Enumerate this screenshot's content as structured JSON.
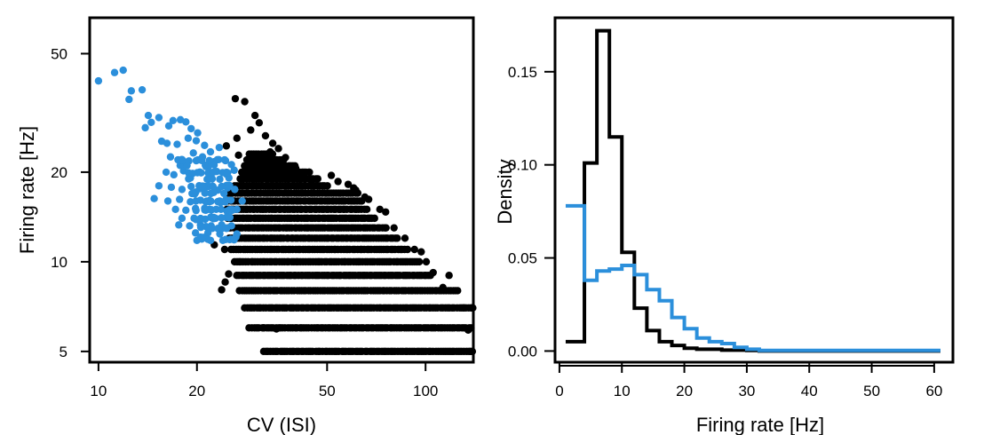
{
  "chart_data": [
    {
      "type": "scatter",
      "xlabel": "CV (ISI)",
      "ylabel": "Firing rate [Hz]",
      "xscale": "log",
      "yscale": "log",
      "xlim": [
        9.4,
        140
      ],
      "ylim": [
        4.6,
        66
      ],
      "xticks": [
        10,
        20,
        50,
        100
      ],
      "yticks": [
        5,
        10,
        20,
        50
      ],
      "series": [
        {
          "color": "#2b8fdb",
          "description": "blue population: higher rates / lower CV cloud",
          "points": [
            [
              10,
              40.5
            ],
            [
              11.2,
              43.2
            ],
            [
              12.6,
              37.5
            ],
            [
              13.6,
              37.8
            ],
            [
              12.4,
              35.1
            ],
            [
              14.2,
              31.0
            ],
            [
              15.3,
              30.5
            ],
            [
              14.5,
              29.4
            ],
            [
              13.9,
              28.2
            ],
            [
              16.4,
              28.6
            ],
            [
              16.9,
              29.8
            ],
            [
              17.8,
              30.0
            ],
            [
              18.5,
              29.5
            ],
            [
              19.2,
              28.0
            ],
            [
              20.1,
              27.1
            ],
            [
              15.6,
              25.4
            ],
            [
              16.2,
              25.0
            ],
            [
              17.4,
              24.8
            ],
            [
              18.8,
              26.0
            ],
            [
              19.9,
              25.5
            ],
            [
              21.1,
              24.6
            ],
            [
              22.0,
              23.4
            ],
            [
              23.4,
              24.2
            ],
            [
              16.6,
              22.5
            ],
            [
              17.5,
              22.0
            ],
            [
              18.9,
              21.8
            ],
            [
              19.5,
              23.2
            ],
            [
              20.8,
              22.5
            ],
            [
              22.6,
              21.7
            ],
            [
              24.3,
              22.0
            ],
            [
              25.5,
              21.2
            ],
            [
              16.1,
              20.0
            ],
            [
              17.0,
              19.6
            ],
            [
              18.2,
              20.2
            ],
            [
              19.4,
              19.8
            ],
            [
              20.6,
              19.9
            ],
            [
              21.8,
              19.4
            ],
            [
              23.0,
              20.1
            ],
            [
              24.6,
              19.7
            ],
            [
              26.0,
              20.3
            ],
            [
              15.3,
              18.0
            ],
            [
              16.7,
              17.8
            ],
            [
              18.0,
              17.5
            ],
            [
              19.2,
              17.9
            ],
            [
              20.4,
              17.6
            ],
            [
              21.7,
              17.9
            ],
            [
              23.2,
              17.4
            ],
            [
              24.8,
              17.7
            ],
            [
              26.1,
              17.5
            ],
            [
              14.8,
              16.3
            ],
            [
              16.3,
              16.0
            ],
            [
              17.7,
              16.2
            ],
            [
              19.1,
              15.9
            ],
            [
              20.5,
              16.1
            ],
            [
              22.0,
              16.0
            ],
            [
              23.6,
              15.8
            ],
            [
              25.4,
              16.1
            ],
            [
              27.5,
              16.0
            ],
            [
              17.2,
              15.0
            ],
            [
              18.5,
              14.9
            ],
            [
              19.8,
              15.1
            ],
            [
              21.3,
              14.9
            ],
            [
              22.9,
              15.0
            ],
            [
              24.7,
              14.8
            ],
            [
              26.5,
              15.0
            ],
            [
              18.0,
              14.0
            ],
            [
              19.6,
              14.0
            ],
            [
              21.2,
              13.9
            ],
            [
              22.8,
              14.0
            ],
            [
              24.6,
              14.1
            ],
            [
              17.6,
              13.3
            ],
            [
              19.0,
              13.2
            ],
            [
              20.5,
              13.3
            ],
            [
              22.1,
              13.2
            ],
            [
              23.8,
              13.3
            ],
            [
              25.5,
              13.2
            ],
            [
              19.8,
              12.5
            ],
            [
              21.6,
              12.5
            ],
            [
              23.5,
              12.4
            ],
            [
              22.0,
              11.8
            ],
            [
              24.0,
              11.8
            ],
            [
              20.0,
              11.8
            ],
            [
              26.5,
              12.4
            ],
            [
              11.9,
              44.0
            ]
          ]
        },
        {
          "color": "#000000",
          "description": "black population: lower rates / higher CV cloud",
          "rate_bands": [
            {
              "rate": 5,
              "cv_from": 32,
              "cv_to": 140
            },
            {
              "rate": 6,
              "cv_from": 29,
              "cv_to": 140
            },
            {
              "rate": 7,
              "cv_from": 28,
              "cv_to": 140
            },
            {
              "rate": 8,
              "cv_from": 27,
              "cv_to": 124
            },
            {
              "rate": 9,
              "cv_from": 26.5,
              "cv_to": 104
            },
            {
              "rate": 10,
              "cv_from": 26,
              "cv_to": 96
            },
            {
              "rate": 11,
              "cv_from": 25.5,
              "cv_to": 88
            },
            {
              "rate": 12,
              "cv_from": 25.2,
              "cv_to": 82
            },
            {
              "rate": 13,
              "cv_from": 25,
              "cv_to": 76
            },
            {
              "rate": 14,
              "cv_from": 24.8,
              "cv_to": 70
            },
            {
              "rate": 15,
              "cv_from": 24.6,
              "cv_to": 66
            },
            {
              "rate": 16,
              "cv_from": 24.5,
              "cv_to": 64
            },
            {
              "rate": 17,
              "cv_from": 24.5,
              "cv_to": 62
            },
            {
              "rate": 18,
              "cv_from": 26,
              "cv_to": 50
            },
            {
              "rate": 19,
              "cv_from": 27,
              "cv_to": 47
            },
            {
              "rate": 20,
              "cv_from": 27.5,
              "cv_to": 44
            },
            {
              "rate": 21,
              "cv_from": 28,
              "cv_to": 40
            },
            {
              "rate": 22,
              "cv_from": 28.5,
              "cv_to": 37
            },
            {
              "rate": 23,
              "cv_from": 29,
              "cv_to": 34
            }
          ],
          "points": [
            [
              26.2,
              35.3
            ],
            [
              28.0,
              34.5
            ],
            [
              30.1,
              31.0
            ],
            [
              31.0,
              29.3
            ],
            [
              29.2,
              27.7
            ],
            [
              32.4,
              26.5
            ],
            [
              26.5,
              26.0
            ],
            [
              34.1,
              25.0
            ],
            [
              35.5,
              24.0
            ],
            [
              33.5,
              23.4
            ],
            [
              37.3,
              22.4
            ],
            [
              24.6,
              24.5
            ],
            [
              26.8,
              22.8
            ],
            [
              36.6,
              21.3
            ],
            [
              39.4,
              20.0
            ],
            [
              42.0,
              19.8
            ],
            [
              44.0,
              20.0
            ],
            [
              32.0,
              6.0
            ],
            [
              35.0,
              5.95
            ],
            [
              25.0,
              9.1
            ],
            [
              24.4,
              8.55
            ],
            [
              23.8,
              8.05
            ],
            [
              22.6,
              11.4
            ],
            [
              24.3,
              11.0
            ],
            [
              40.1,
              20.6
            ],
            [
              44.8,
              18.7
            ],
            [
              51.5,
              19.5
            ],
            [
              54.0,
              18.6
            ],
            [
              58.0,
              18.2
            ],
            [
              61.2,
              17.4
            ],
            [
              60.3,
              17.7
            ],
            [
              67.0,
              16.2
            ],
            [
              72.5,
              15.0
            ],
            [
              80.1,
              13.0
            ],
            [
              86.5,
              12.0
            ],
            [
              92.5,
              11.0
            ],
            [
              100.5,
              10.0
            ],
            [
              105.5,
              9.2
            ],
            [
              113.0,
              8.2
            ],
            [
              125.3,
              8.0
            ],
            [
              131.0,
              7.0
            ],
            [
              138.5,
              7.0
            ],
            [
              135.0,
              5.9
            ],
            [
              139.0,
              5.0
            ],
            [
              118.0,
              9.0
            ],
            [
              97.0,
              10.8
            ],
            [
              75.5,
              14.7
            ],
            [
              65.2,
              16.5
            ]
          ]
        }
      ]
    },
    {
      "type": "line",
      "subtype": "step-histogram",
      "xlabel": "Firing rate [Hz]",
      "ylabel": "Density",
      "xlim": [
        -0.7,
        63
      ],
      "ylim": [
        -0.006,
        0.179
      ],
      "xticks": [
        0,
        10,
        20,
        30,
        40,
        50,
        60
      ],
      "yticks": [
        0.0,
        0.05,
        0.1,
        0.15
      ],
      "ytick_labels": [
        "0.00",
        "0.05",
        "0.10",
        "0.15"
      ],
      "series": [
        {
          "color": "#000000",
          "bin_edges": [
            1,
            4,
            6,
            8,
            10,
            12,
            14,
            16,
            18,
            20,
            22,
            24,
            26,
            28,
            30,
            32,
            61
          ],
          "density": [
            0.005,
            0.101,
            0.172,
            0.115,
            0.053,
            0.023,
            0.011,
            0.005,
            0.003,
            0.0015,
            0.001,
            0.001,
            0.0005,
            0.0005,
            0.0003,
            0.0
          ]
        },
        {
          "color": "#2b8fdb",
          "bin_edges": [
            1,
            4,
            6,
            8,
            10,
            12,
            14,
            16,
            18,
            20,
            22,
            24,
            26,
            28,
            30,
            32,
            61
          ],
          "density": [
            0.078,
            0.038,
            0.043,
            0.044,
            0.046,
            0.041,
            0.033,
            0.027,
            0.018,
            0.012,
            0.007,
            0.005,
            0.004,
            0.002,
            0.001,
            0.0003
          ]
        }
      ]
    }
  ]
}
